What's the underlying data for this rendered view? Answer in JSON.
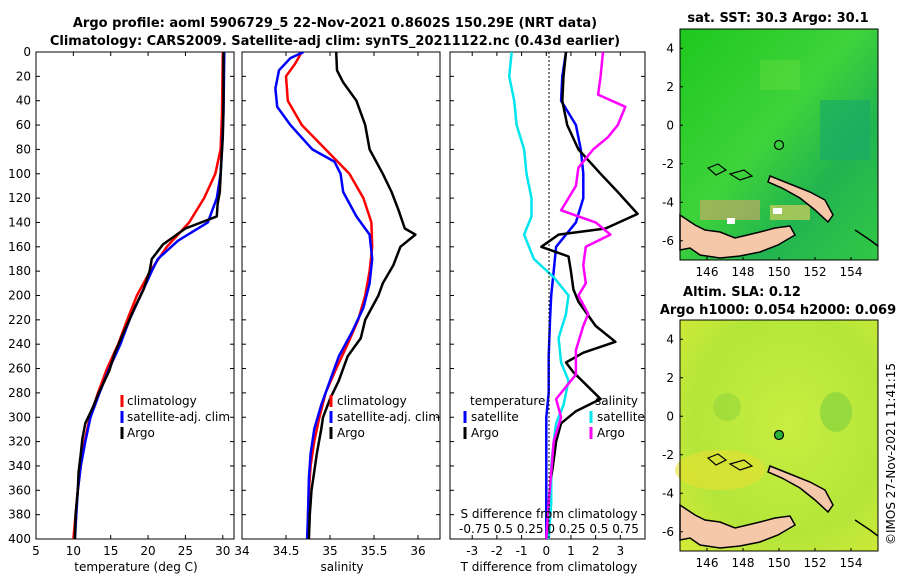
{
  "title_line1": "Argo profile: aoml 5906729_5 22-Nov-2021 0.8602S 150.29E (NRT data)",
  "title_line2": "Climatology: CARS2009. Satellite-adj clim: synTS_20211122.nc (0.43d earlier)",
  "copyright": "©IMOS 27-Nov-2021 11:41:15",
  "colors": {
    "climatology": "#ff0000",
    "satellite": "#0000ff",
    "argo": "#000000",
    "sal_sat": "#00e5ee",
    "sal_argo": "#ff00ff"
  },
  "chart_data": [
    {
      "name": "temperature-panel",
      "type": "line",
      "xlabel": "temperature (deg C)",
      "xlim": [
        5,
        31.5
      ],
      "xticks": [
        5,
        10,
        15,
        20,
        25,
        30
      ],
      "ylim": [
        0,
        400
      ],
      "yticks": [
        0,
        20,
        40,
        60,
        80,
        100,
        120,
        140,
        160,
        180,
        200,
        220,
        240,
        260,
        280,
        300,
        320,
        340,
        360,
        380,
        400
      ],
      "legend": [
        "climatology",
        "satellite-adj. clim",
        "Argo"
      ],
      "series": [
        {
          "name": "climatology",
          "color": "#ff0000",
          "points": [
            [
              30,
              0
            ],
            [
              29.9,
              50
            ],
            [
              29.7,
              80
            ],
            [
              29,
              100
            ],
            [
              27.5,
              120
            ],
            [
              25.5,
              140
            ],
            [
              22.5,
              160
            ],
            [
              20.3,
              180
            ],
            [
              18.5,
              200
            ],
            [
              17.2,
              220
            ],
            [
              16,
              240
            ],
            [
              14.5,
              260
            ],
            [
              13.3,
              280
            ],
            [
              12.2,
              300
            ],
            [
              11.5,
              320
            ],
            [
              11,
              340
            ],
            [
              10.6,
              360
            ],
            [
              10.3,
              380
            ],
            [
              10,
              400
            ]
          ]
        },
        {
          "name": "satellite-adj. clim",
          "color": "#0000ff",
          "points": [
            [
              30.2,
              0
            ],
            [
              30.1,
              50
            ],
            [
              29.9,
              80
            ],
            [
              29.7,
              100
            ],
            [
              29.2,
              120
            ],
            [
              28,
              140
            ],
            [
              24,
              155
            ],
            [
              21.3,
              170
            ],
            [
              20.5,
              180
            ],
            [
              19,
              200
            ],
            [
              17.5,
              220
            ],
            [
              16.3,
              240
            ],
            [
              14.8,
              260
            ],
            [
              13.5,
              280
            ],
            [
              12.3,
              300
            ],
            [
              11.6,
              320
            ],
            [
              11,
              340
            ],
            [
              10.6,
              360
            ],
            [
              10.4,
              380
            ],
            [
              10.2,
              400
            ]
          ]
        },
        {
          "name": "Argo",
          "color": "#000000",
          "points": [
            [
              30.1,
              0
            ],
            [
              30.1,
              40
            ],
            [
              30,
              70
            ],
            [
              29.8,
              90
            ],
            [
              29.6,
              115
            ],
            [
              29.3,
              125
            ],
            [
              29.2,
              135
            ],
            [
              25,
              145
            ],
            [
              22,
              158
            ],
            [
              20.5,
              170
            ],
            [
              20.2,
              180
            ],
            [
              19.4,
              195
            ],
            [
              18.2,
              210
            ],
            [
              17.5,
              220
            ],
            [
              16.6,
              232
            ],
            [
              15.5,
              248
            ],
            [
              14.8,
              262
            ],
            [
              13.4,
              280
            ],
            [
              12.6,
              292
            ],
            [
              11.6,
              305
            ],
            [
              11.2,
              318
            ],
            [
              11,
              330
            ],
            [
              10.7,
              345
            ],
            [
              10.6,
              360
            ],
            [
              10.3,
              380
            ],
            [
              10.2,
              400
            ]
          ]
        }
      ]
    },
    {
      "name": "salinity-panel",
      "type": "line",
      "xlabel": "salinity",
      "xlim": [
        34,
        36.25
      ],
      "xticks": [
        34,
        34.5,
        35,
        35.5,
        36
      ],
      "ylim": [
        0,
        400
      ],
      "legend": [
        "climatology",
        "satellite-adj. clim",
        "Argo"
      ],
      "series": [
        {
          "name": "climatology",
          "color": "#ff0000",
          "points": [
            [
              34.68,
              0
            ],
            [
              34.6,
              10
            ],
            [
              34.5,
              20
            ],
            [
              34.52,
              40
            ],
            [
              34.68,
              60
            ],
            [
              34.95,
              80
            ],
            [
              35.22,
              100
            ],
            [
              35.38,
              120
            ],
            [
              35.47,
              140
            ],
            [
              35.48,
              160
            ],
            [
              35.45,
              180
            ],
            [
              35.4,
              200
            ],
            [
              35.32,
              220
            ],
            [
              35.2,
              240
            ],
            [
              35.07,
              260
            ],
            [
              34.95,
              280
            ],
            [
              34.88,
              300
            ],
            [
              34.82,
              320
            ],
            [
              34.78,
              340
            ],
            [
              34.76,
              360
            ],
            [
              34.75,
              380
            ],
            [
              34.75,
              400
            ]
          ]
        },
        {
          "name": "satellite-adj. clim",
          "color": "#0000ff",
          "points": [
            [
              34.7,
              0
            ],
            [
              34.55,
              5
            ],
            [
              34.42,
              15
            ],
            [
              34.38,
              30
            ],
            [
              34.4,
              45
            ],
            [
              34.55,
              60
            ],
            [
              34.8,
              80
            ],
            [
              35.05,
              90
            ],
            [
              35.12,
              100
            ],
            [
              35.15,
              115
            ],
            [
              35.3,
              135
            ],
            [
              35.45,
              150
            ],
            [
              35.48,
              170
            ],
            [
              35.45,
              190
            ],
            [
              35.38,
              210
            ],
            [
              35.25,
              230
            ],
            [
              35.1,
              250
            ],
            [
              35,
              270
            ],
            [
              34.9,
              290
            ],
            [
              34.82,
              310
            ],
            [
              34.78,
              330
            ],
            [
              34.76,
              350
            ],
            [
              34.75,
              380
            ],
            [
              34.74,
              400
            ]
          ]
        },
        {
          "name": "Argo",
          "color": "#000000",
          "points": [
            [
              35.07,
              0
            ],
            [
              35.08,
              15
            ],
            [
              35.15,
              25
            ],
            [
              35.3,
              40
            ],
            [
              35.4,
              60
            ],
            [
              35.45,
              80
            ],
            [
              35.6,
              100
            ],
            [
              35.7,
              115
            ],
            [
              35.78,
              130
            ],
            [
              35.85,
              145
            ],
            [
              35.97,
              150
            ],
            [
              35.8,
              160
            ],
            [
              35.72,
              175
            ],
            [
              35.6,
              190
            ],
            [
              35.55,
              200
            ],
            [
              35.4,
              220
            ],
            [
              35.35,
              235
            ],
            [
              35.2,
              250
            ],
            [
              35.1,
              270
            ],
            [
              35,
              285
            ],
            [
              34.92,
              300
            ],
            [
              34.9,
              310
            ],
            [
              34.85,
              330
            ],
            [
              34.82,
              345
            ],
            [
              34.79,
              360
            ],
            [
              34.77,
              380
            ],
            [
              34.76,
              400
            ]
          ]
        }
      ]
    },
    {
      "name": "difference-panel",
      "type": "line",
      "xlabel": "T difference from climatology",
      "xlim": [
        -3.9,
        4
      ],
      "xticks": [
        -3,
        -2,
        -1,
        0,
        1,
        2,
        3
      ],
      "ylim": [
        0,
        400
      ],
      "top_label": "S difference from climatology",
      "s_ticks_text": "-0.75 0.5 0.25 0 0.25 0.5 0.75",
      "legend_temperature": {
        "title": "temperature",
        "items": [
          "satellite",
          "Argo"
        ]
      },
      "legend_salinity": {
        "title": "salinity",
        "items": [
          "satellite",
          "Argo"
        ]
      },
      "series": [
        {
          "name": "T satellite",
          "color": "#0000ff",
          "points": [
            [
              0.8,
              0
            ],
            [
              0.65,
              20
            ],
            [
              0.6,
              40
            ],
            [
              1.2,
              60
            ],
            [
              1.4,
              80
            ],
            [
              1.5,
              100
            ],
            [
              1.5,
              120
            ],
            [
              1.2,
              140
            ],
            [
              0.4,
              160
            ],
            [
              0.3,
              180
            ],
            [
              0.2,
              200
            ],
            [
              0.15,
              220
            ],
            [
              0.1,
              250
            ],
            [
              0.1,
              280
            ],
            [
              0,
              300
            ],
            [
              0,
              330
            ],
            [
              0,
              360
            ],
            [
              0,
              400
            ]
          ]
        },
        {
          "name": "T Argo",
          "color": "#000000",
          "points": [
            [
              0.8,
              0
            ],
            [
              0.7,
              20
            ],
            [
              0.65,
              40
            ],
            [
              0.85,
              60
            ],
            [
              1.3,
              80
            ],
            [
              2.2,
              100
            ],
            [
              2.9,
              115
            ],
            [
              3.7,
              133
            ],
            [
              2.4,
              145
            ],
            [
              0.5,
              150
            ],
            [
              -0.2,
              160
            ],
            [
              0.9,
              168
            ],
            [
              1,
              180
            ],
            [
              1.1,
              195
            ],
            [
              1.3,
              205
            ],
            [
              2,
              225
            ],
            [
              2.8,
              238
            ],
            [
              1.5,
              247
            ],
            [
              0.8,
              255
            ],
            [
              1.1,
              263
            ],
            [
              1.7,
              275
            ],
            [
              2.2,
              285
            ],
            [
              1.2,
              295
            ],
            [
              0.6,
              305
            ],
            [
              0.4,
              320
            ],
            [
              0.3,
              335
            ],
            [
              0.2,
              350
            ],
            [
              0.15,
              370
            ],
            [
              0.1,
              400
            ]
          ]
        },
        {
          "name": "S satellite",
          "color": "#00e5ee",
          "points": [
            [
              -1.4,
              0
            ],
            [
              -1.5,
              20
            ],
            [
              -1.3,
              40
            ],
            [
              -1.2,
              60
            ],
            [
              -0.9,
              80
            ],
            [
              -0.8,
              100
            ],
            [
              -0.6,
              120
            ],
            [
              -0.6,
              135
            ],
            [
              -0.9,
              150
            ],
            [
              -0.5,
              170
            ],
            [
              0.3,
              185
            ],
            [
              0.9,
              200
            ],
            [
              0.8,
              215
            ],
            [
              0.5,
              235
            ],
            [
              0.6,
              255
            ],
            [
              0.9,
              270
            ],
            [
              0.7,
              290
            ],
            [
              0.4,
              305
            ],
            [
              0.3,
              320
            ],
            [
              0.2,
              340
            ],
            [
              0.2,
              370
            ],
            [
              0.1,
              400
            ]
          ]
        },
        {
          "name": "S Argo",
          "color": "#ff00ff",
          "points": [
            [
              2.3,
              0
            ],
            [
              2.2,
              20
            ],
            [
              2.1,
              35
            ],
            [
              3.2,
              45
            ],
            [
              2.9,
              60
            ],
            [
              2.5,
              70
            ],
            [
              1.9,
              80
            ],
            [
              1.3,
              95
            ],
            [
              1.2,
              110
            ],
            [
              0.6,
              130
            ],
            [
              2,
              140
            ],
            [
              2.6,
              150
            ],
            [
              1.6,
              160
            ],
            [
              1.5,
              175
            ],
            [
              1.6,
              190
            ],
            [
              1.3,
              200
            ],
            [
              1.7,
              215
            ],
            [
              1.5,
              225
            ],
            [
              1.2,
              245
            ],
            [
              1.2,
              265
            ],
            [
              0.4,
              285
            ],
            [
              0.6,
              300
            ],
            [
              0.3,
              320
            ],
            [
              0.2,
              345
            ],
            [
              0.1,
              370
            ],
            [
              0,
              400
            ]
          ]
        }
      ]
    },
    {
      "name": "sst-map",
      "type": "heatmap",
      "title": "sat. SST: 30.3 Argo: 30.1",
      "xticks": [
        146,
        148,
        150,
        152,
        154
      ],
      "yticks": [
        4,
        2,
        0,
        -2,
        -4,
        -6
      ],
      "xlim": [
        144.5,
        155.5
      ],
      "ylim": [
        -7,
        5
      ],
      "argo_position": [
        150.29,
        -0.86
      ]
    },
    {
      "name": "sla-map",
      "type": "heatmap",
      "title_line1": "Altim. SLA: 0.12",
      "title_line2": "Argo h1000: 0.054 h2000: 0.069",
      "xticks": [
        146,
        148,
        150,
        152,
        154
      ],
      "yticks": [
        4,
        2,
        0,
        -2,
        -4,
        -6
      ],
      "xlim": [
        144.5,
        155.5
      ],
      "ylim": [
        -7,
        5
      ],
      "argo_position": [
        150.29,
        -0.86
      ]
    }
  ]
}
